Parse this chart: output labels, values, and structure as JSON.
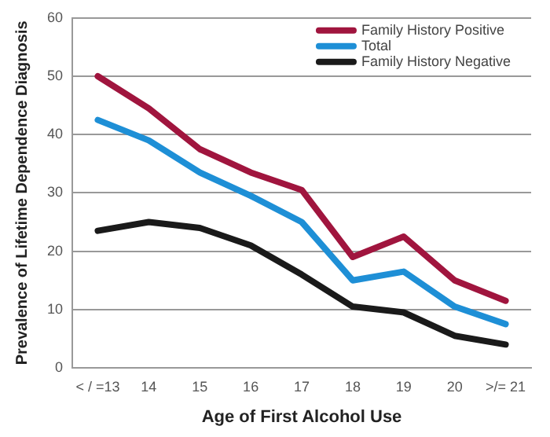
{
  "chart_data": {
    "type": "line",
    "xlabel": "Age of First Alcohol Use",
    "ylabel": "Prevalence of Lifetime Dependence Diagnosis",
    "categories": [
      "< / =13",
      "14",
      "15",
      "16",
      "17",
      "18",
      "19",
      "20",
      ">/= 21"
    ],
    "series": [
      {
        "name": "Family History Positive",
        "color": "#a0153e",
        "values": [
          50,
          44.5,
          37.5,
          33.5,
          30.5,
          19,
          22.5,
          15,
          11.5
        ]
      },
      {
        "name": "Total",
        "color": "#1e8fd6",
        "values": [
          42.5,
          39,
          33.5,
          29.5,
          25,
          15,
          16.5,
          10.5,
          7.5
        ]
      },
      {
        "name": "Family History Negative",
        "color": "#1a1a1a",
        "values": [
          23.5,
          25,
          24,
          21,
          16,
          10.5,
          9.5,
          5.5,
          4
        ]
      }
    ],
    "ylim": [
      0,
      60
    ],
    "yticks": [
      0,
      10,
      20,
      30,
      40,
      50,
      60
    ],
    "grid": "y",
    "legend": "top right",
    "marker": "none",
    "line_style": "solid"
  }
}
